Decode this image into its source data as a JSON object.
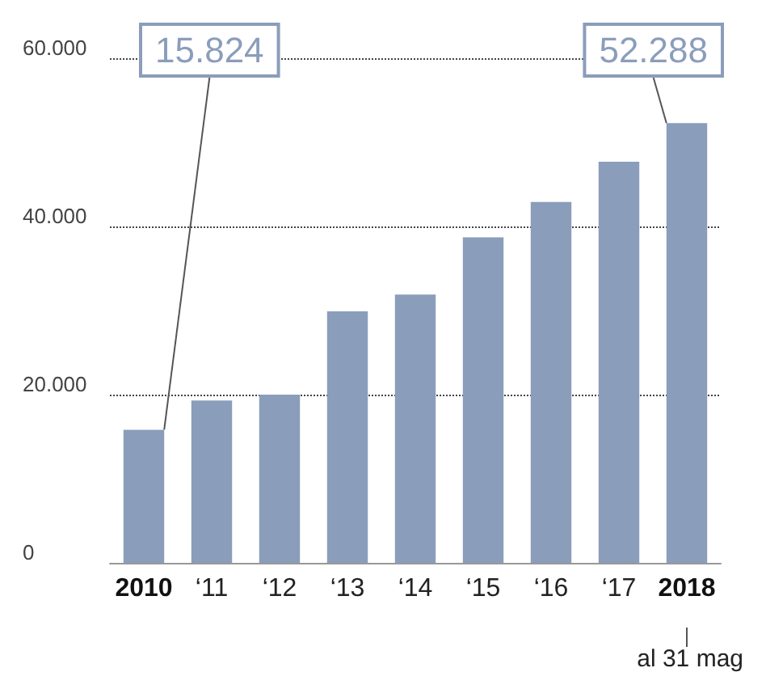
{
  "chart_data": {
    "type": "bar",
    "categories": [
      "2010",
      "‘11",
      "‘12",
      "‘13",
      "‘14",
      "‘15",
      "‘16",
      "‘17",
      "2018"
    ],
    "values": [
      15824,
      19300,
      20000,
      29900,
      31900,
      38700,
      42900,
      47700,
      52288
    ],
    "value_labels": [
      "15.824",
      null,
      null,
      null,
      null,
      null,
      null,
      null,
      "52.288"
    ],
    "color": "#8a9dbb",
    "ylim": [
      0,
      60000
    ],
    "yticks": [
      {
        "value": 0,
        "label": "0"
      },
      {
        "value": 20000,
        "label": "20.000"
      },
      {
        "value": 40000,
        "label": "40.000"
      },
      {
        "value": 60000,
        "label": "60.000"
      }
    ],
    "grid": "y",
    "annotations": [
      "al 31 mag"
    ]
  }
}
